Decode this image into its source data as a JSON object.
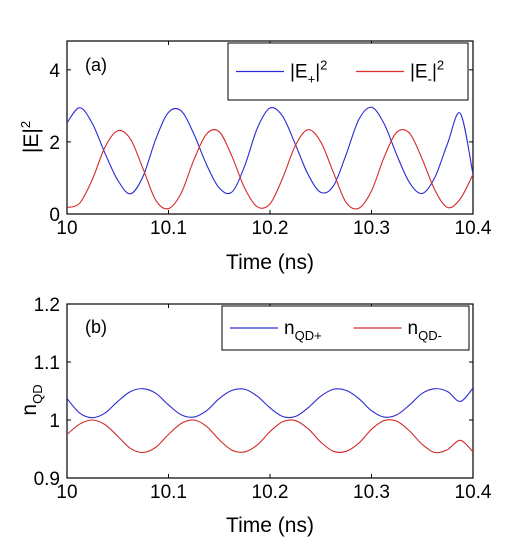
{
  "chart_data": [
    {
      "type": "line",
      "panel_label": "(a)",
      "xlabel": "Time (ns)",
      "ylabel": "|E|",
      "ylabel_sup": "2",
      "xlim": [
        10,
        10.4
      ],
      "ylim": [
        0,
        4.8
      ],
      "xticks": [
        "10",
        "10.1",
        "10.2",
        "10.3",
        "10.4"
      ],
      "yticks": [
        "0",
        "2",
        "4"
      ],
      "grid": false,
      "legend_position": "top-right",
      "series": [
        {
          "name": "|E+|2",
          "color": "#2b2bd4",
          "x": [
            10.0,
            10.0125,
            10.025,
            10.0375,
            10.05,
            10.0625,
            10.075,
            10.0875,
            10.1,
            10.1125,
            10.125,
            10.1375,
            10.15,
            10.1625,
            10.175,
            10.1875,
            10.2,
            10.2125,
            10.225,
            10.2375,
            10.25,
            10.2625,
            10.275,
            10.2875,
            10.3,
            10.3125,
            10.325,
            10.3375,
            10.35,
            10.3625,
            10.375,
            10.3875,
            10.4
          ],
          "y": [
            2.53,
            2.95,
            2.51,
            1.68,
            0.94,
            0.56,
            1.05,
            2.08,
            2.82,
            2.86,
            2.22,
            1.37,
            0.72,
            0.61,
            1.33,
            2.38,
            2.94,
            2.71,
            1.93,
            1.1,
            0.6,
            0.78,
            1.65,
            2.62,
            2.96,
            2.5,
            1.63,
            0.87,
            0.57,
            1.02,
            1.96,
            2.79,
            1.1
          ]
        },
        {
          "name": "|E-|2",
          "color": "#d42b2b",
          "x": [
            10.0,
            10.0125,
            10.025,
            10.0375,
            10.05,
            10.0625,
            10.075,
            10.0875,
            10.1,
            10.1125,
            10.125,
            10.1375,
            10.15,
            10.1625,
            10.175,
            10.1875,
            10.2,
            10.2125,
            10.225,
            10.2375,
            10.25,
            10.2625,
            10.275,
            10.2875,
            10.3,
            10.3125,
            10.325,
            10.3375,
            10.35,
            10.3625,
            10.375,
            10.3875,
            10.4
          ],
          "y": [
            0.18,
            0.3,
            0.96,
            1.86,
            2.31,
            2.08,
            1.25,
            0.38,
            0.15,
            0.58,
            1.5,
            2.22,
            2.28,
            1.6,
            0.72,
            0.2,
            0.28,
            1.0,
            1.9,
            2.34,
            2.0,
            1.15,
            0.32,
            0.16,
            0.64,
            1.58,
            2.27,
            2.24,
            1.52,
            0.66,
            0.18,
            0.42,
            1.1
          ]
        }
      ],
      "legend": [
        {
          "base": "|E",
          "sub": "+",
          "tail": "|",
          "sup": "2"
        },
        {
          "base": "|E",
          "sub": "-",
          "tail": "|",
          "sup": "2"
        }
      ]
    },
    {
      "type": "line",
      "panel_label": "(b)",
      "xlabel": "Time (ns)",
      "ylabel": "n",
      "ylabel_sub": "QD",
      "xlim": [
        10,
        10.4
      ],
      "ylim": [
        0.9,
        1.2
      ],
      "xticks": [
        "10",
        "10.1",
        "10.2",
        "10.3",
        "10.4"
      ],
      "yticks": [
        "0.9",
        "1",
        "1.1",
        "1.2"
      ],
      "grid": false,
      "legend_position": "top-right",
      "series": [
        {
          "name": "nQD+",
          "color": "#2b2bd4",
          "x": [
            10.0,
            10.0125,
            10.025,
            10.0375,
            10.05,
            10.0625,
            10.075,
            10.0875,
            10.1,
            10.1125,
            10.125,
            10.1375,
            10.15,
            10.1625,
            10.175,
            10.1875,
            10.2,
            10.2125,
            10.225,
            10.2375,
            10.25,
            10.2625,
            10.275,
            10.2875,
            10.3,
            10.3125,
            10.325,
            10.3375,
            10.35,
            10.3625,
            10.375,
            10.3875,
            10.4
          ],
          "y": [
            1.037,
            1.012,
            1.004,
            1.012,
            1.032,
            1.049,
            1.054,
            1.046,
            1.026,
            1.009,
            1.005,
            1.016,
            1.037,
            1.051,
            1.053,
            1.041,
            1.021,
            1.006,
            1.006,
            1.021,
            1.041,
            1.053,
            1.051,
            1.037,
            1.016,
            1.005,
            1.009,
            1.026,
            1.046,
            1.054,
            1.049,
            1.032,
            1.055
          ]
        },
        {
          "name": "nQD-",
          "color": "#d42b2b",
          "x": [
            10.0,
            10.0125,
            10.025,
            10.0375,
            10.05,
            10.0625,
            10.075,
            10.0875,
            10.1,
            10.1125,
            10.125,
            10.1375,
            10.15,
            10.1625,
            10.175,
            10.1875,
            10.2,
            10.2125,
            10.225,
            10.2375,
            10.25,
            10.2625,
            10.275,
            10.2875,
            10.3,
            10.3125,
            10.325,
            10.3375,
            10.35,
            10.3625,
            10.375,
            10.3875,
            10.4
          ],
          "y": [
            0.975,
            0.993,
            1.0,
            0.992,
            0.972,
            0.951,
            0.944,
            0.953,
            0.975,
            0.994,
            1.0,
            0.989,
            0.966,
            0.948,
            0.945,
            0.957,
            0.98,
            0.997,
            0.999,
            0.985,
            0.962,
            0.946,
            0.946,
            0.96,
            0.984,
            0.999,
            0.998,
            0.981,
            0.958,
            0.944,
            0.949,
            0.965,
            0.945
          ]
        }
      ],
      "legend": [
        {
          "base": "n",
          "sub": "QD+"
        },
        {
          "base": "n",
          "sub": "QD-"
        }
      ]
    }
  ]
}
